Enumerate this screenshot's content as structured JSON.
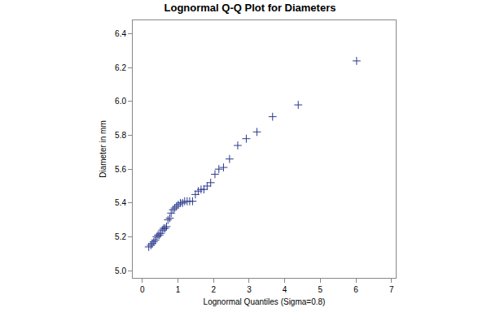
{
  "chart_data": {
    "type": "scatter",
    "title": "Lognormal Q-Q Plot for Diameters",
    "x_label": "Lognormal Quantiles (Sigma=0.8)",
    "y_label": "Diameter in mm",
    "color": "#2b3a8c",
    "marker": "plus",
    "grid": false,
    "x": [
      0.18,
      0.24,
      0.28,
      0.32,
      0.36,
      0.4,
      0.44,
      0.48,
      0.52,
      0.56,
      0.6,
      0.64,
      0.68,
      0.72,
      0.77,
      0.81,
      0.86,
      0.91,
      0.96,
      1.01,
      1.07,
      1.13,
      1.19,
      1.26,
      1.33,
      1.41,
      1.49,
      1.57,
      1.65,
      1.73,
      1.82,
      1.92,
      2.04,
      2.15,
      2.28,
      2.45,
      2.68,
      2.92,
      3.22,
      3.66,
      4.38,
      6.02
    ],
    "y": [
      5.14,
      5.15,
      5.16,
      5.17,
      5.18,
      5.2,
      5.21,
      5.21,
      5.22,
      5.24,
      5.25,
      5.25,
      5.26,
      5.3,
      5.31,
      5.34,
      5.36,
      5.37,
      5.38,
      5.39,
      5.4,
      5.4,
      5.41,
      5.41,
      5.41,
      5.41,
      5.45,
      5.47,
      5.48,
      5.48,
      5.5,
      5.52,
      5.57,
      5.6,
      5.61,
      5.66,
      5.74,
      5.78,
      5.82,
      5.91,
      5.98,
      6.24
    ],
    "xlim": [
      -0.27,
      7.12
    ],
    "ylim": [
      4.957,
      6.48
    ],
    "xticks": [
      0,
      1,
      2,
      3,
      4,
      5,
      6,
      7
    ],
    "yticks": [
      {
        "value": 5.0,
        "label": "5.0"
      },
      5.2,
      5.4,
      5.6,
      5.8,
      {
        "value": 6.0,
        "label": "6.0"
      },
      6.2,
      6.4
    ]
  }
}
